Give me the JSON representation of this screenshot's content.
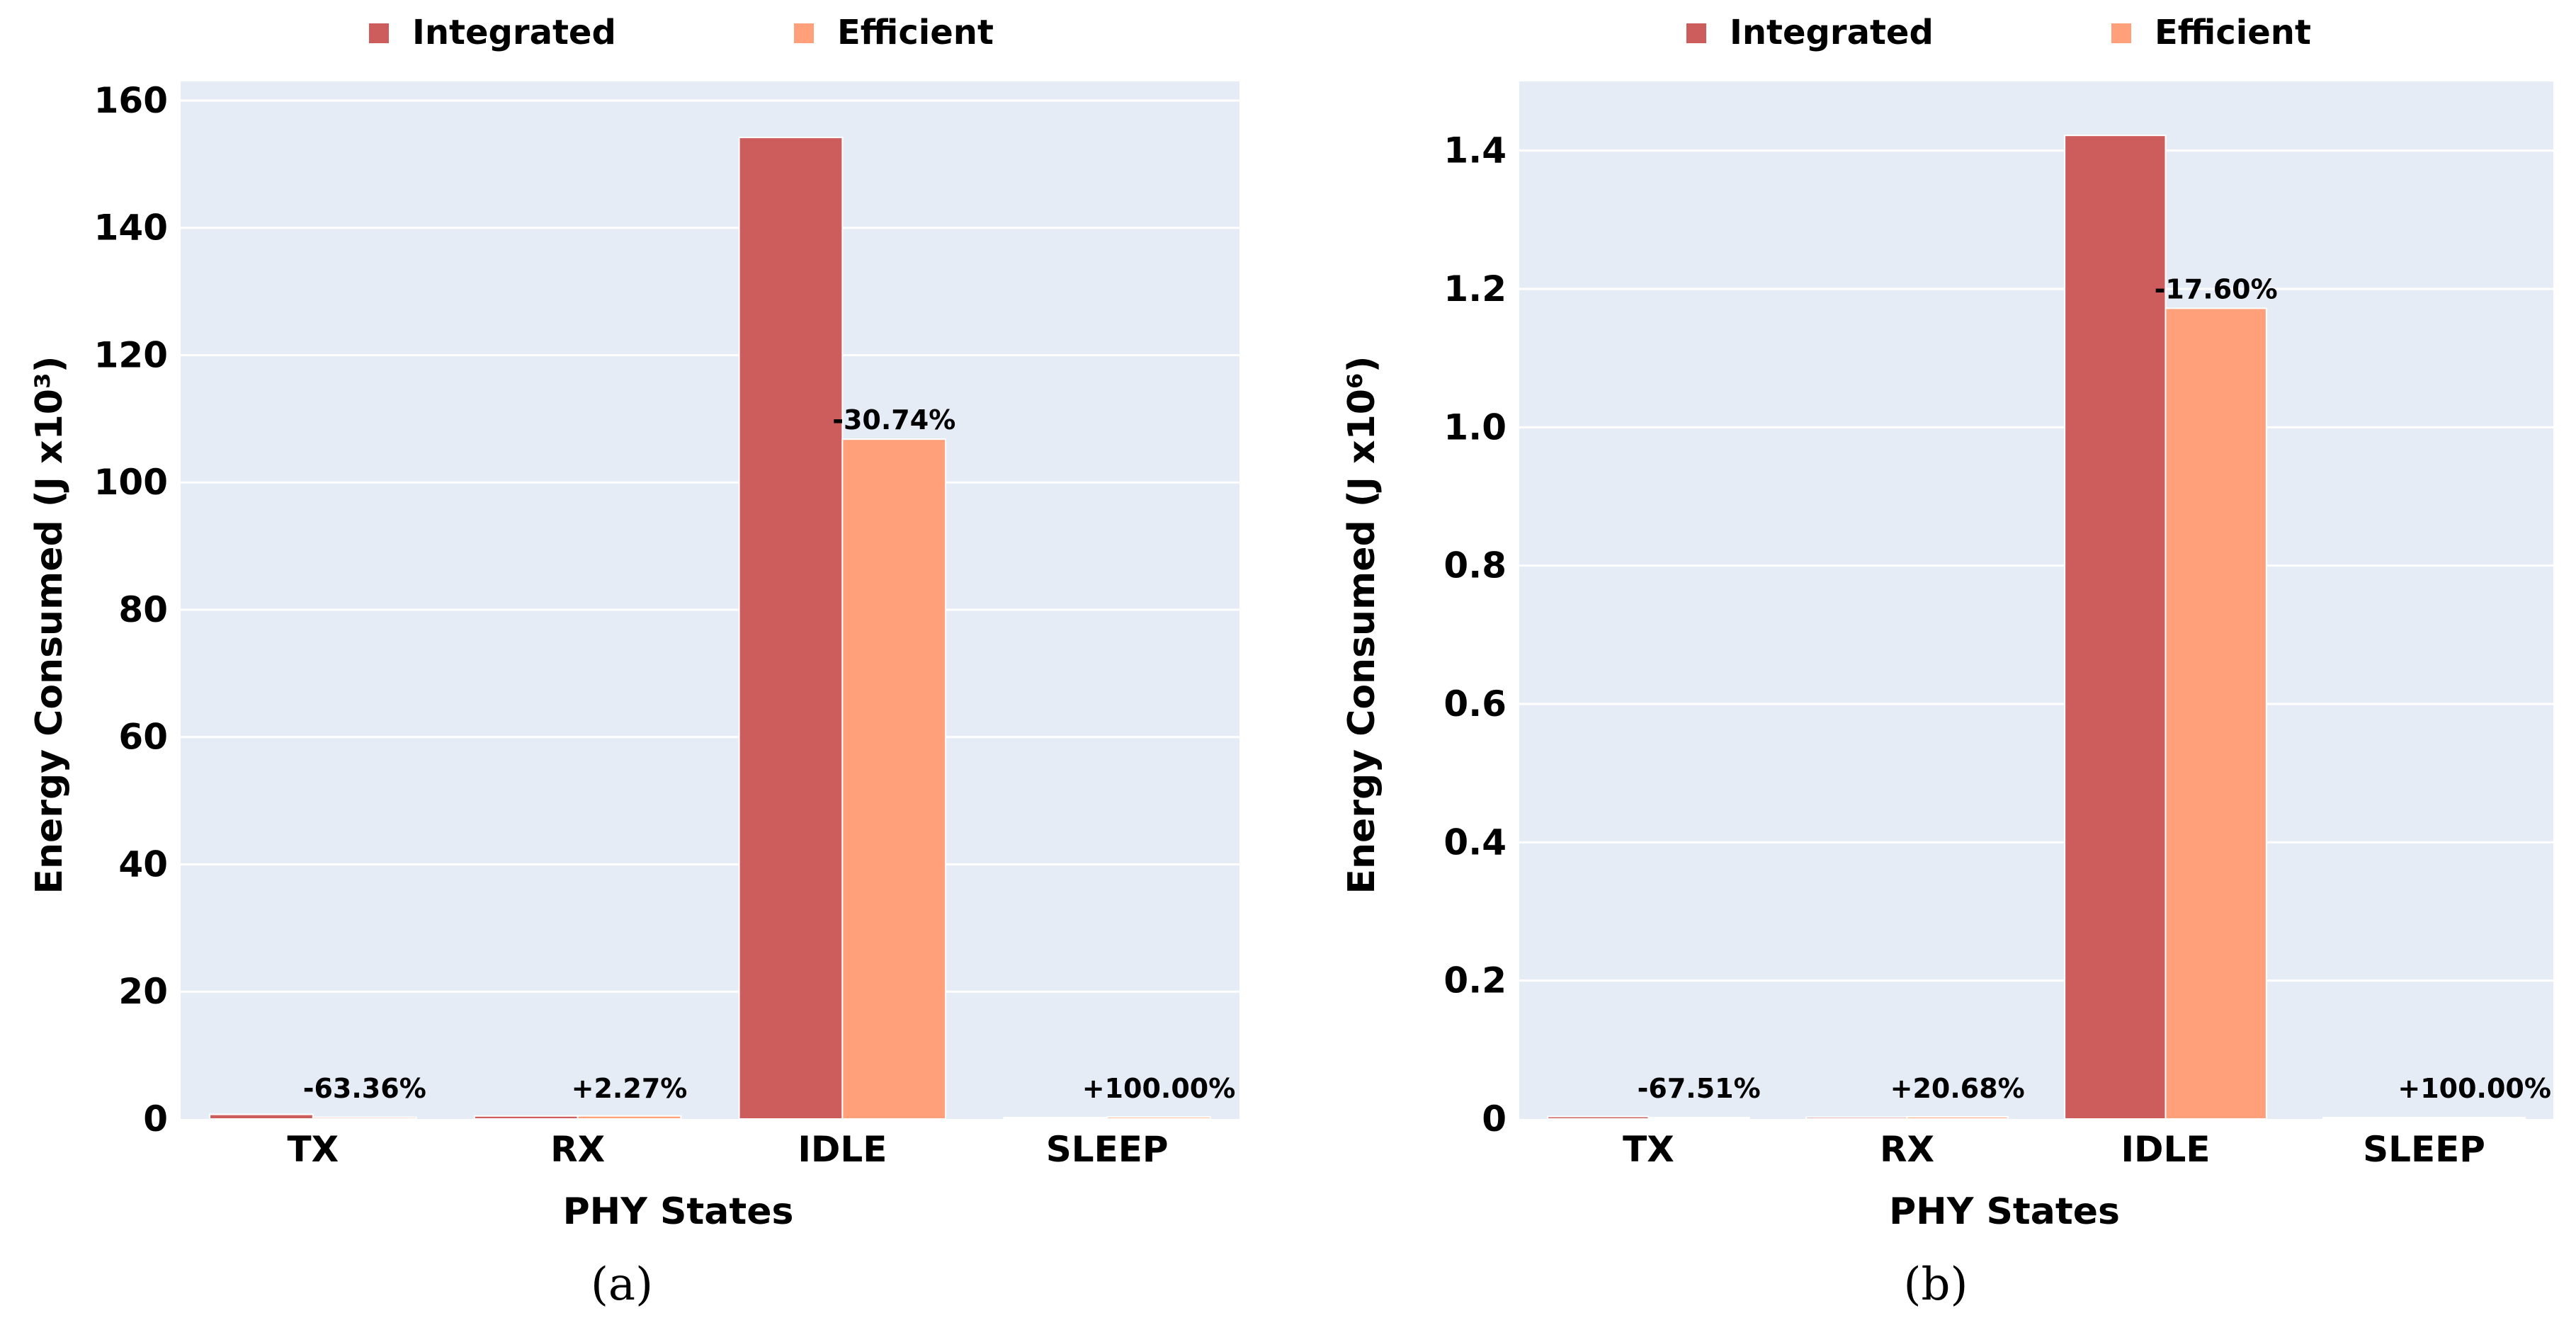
{
  "chart_data": [
    {
      "type": "bar",
      "caption": "(a)",
      "categories": [
        "TX",
        "RX",
        "IDLE",
        "SLEEP"
      ],
      "series": [
        {
          "name": "Integrated",
          "color": "#cd5c5c",
          "values": [
            0.71,
            0.47,
            154.2,
            0
          ]
        },
        {
          "name": "Efficient",
          "color": "#ffa07a",
          "values": [
            0.26,
            0.48,
            106.8,
            0.3
          ]
        }
      ],
      "bar_labels": [
        "-63.36%",
        "+2.27%",
        "-30.74%",
        "+100.00%"
      ],
      "xlabel": "PHY States",
      "ylabel": "Energy Consumed (J x10³)",
      "ylim": [
        0,
        163
      ],
      "yticks": [
        0,
        20,
        40,
        60,
        80,
        100,
        120,
        140,
        160
      ],
      "ytick_labels": [
        "0",
        "20",
        "40",
        "60",
        "80",
        "100",
        "120",
        "140",
        "160"
      ]
    },
    {
      "type": "bar",
      "caption": "(b)",
      "categories": [
        "TX",
        "RX",
        "IDLE",
        "SLEEP"
      ],
      "series": [
        {
          "name": "Integrated",
          "color": "#cd5c5c",
          "values": [
            0.0035,
            0.0025,
            1.422,
            0
          ]
        },
        {
          "name": "Efficient",
          "color": "#ffa07a",
          "values": [
            0.0011,
            0.003,
            1.172,
            0.002
          ]
        }
      ],
      "bar_labels": [
        "-67.51%",
        "+20.68%",
        "-17.60%",
        "+100.00%"
      ],
      "xlabel": "PHY States",
      "ylabel": "Energy Consumed (J x10⁶)",
      "ylim": [
        0,
        1.5
      ],
      "yticks": [
        0,
        0.2,
        0.4,
        0.6,
        0.8,
        1.0,
        1.2,
        1.4
      ],
      "ytick_labels": [
        "0",
        "0.2",
        "0.4",
        "0.6",
        "0.8",
        "1.0",
        "1.2",
        "1.4"
      ]
    }
  ]
}
